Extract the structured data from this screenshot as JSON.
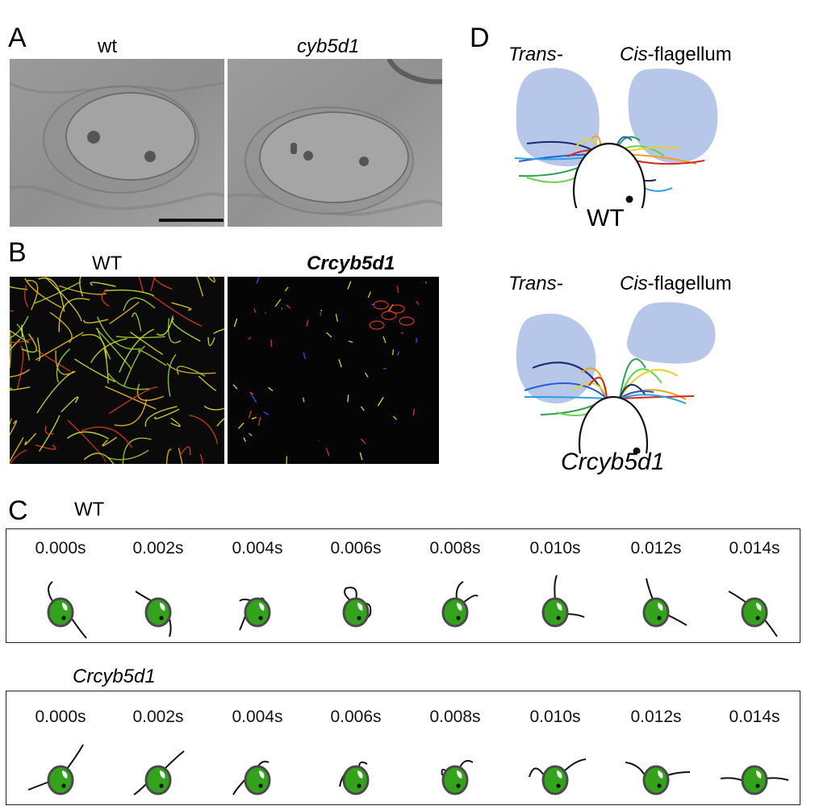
{
  "panels": {
    "A": {
      "letter": "A",
      "left_label": "wt",
      "right_label": "cyb5d1"
    },
    "B": {
      "letter": "B",
      "left_label": "WT",
      "right_label": "Crcyb5d1"
    },
    "C": {
      "letter": "C",
      "row1_label": "WT",
      "row2_label": "Crcyb5d1",
      "times": [
        "0.000s",
        "0.002s",
        "0.004s",
        "0.006s",
        "0.008s",
        "0.010s",
        "0.012s",
        "0.014s"
      ]
    },
    "D": {
      "letter": "D",
      "top": {
        "trans_label": "Trans-",
        "cis_label": "Cis",
        "cis_suffix": "-flagellum",
        "caption": "WT"
      },
      "bottom": {
        "trans_label": "Trans-",
        "cis_label": "Cis",
        "cis_suffix": "-flagellum",
        "caption": "Crcyb5d1"
      }
    }
  },
  "colors": {
    "cell_green": "#33a31c",
    "cell_outline": "#4a4a4a",
    "envelope_blue": "#a9bde6",
    "micro_gray": "#8c8c8c",
    "dark_bg": "#0a0a0a"
  }
}
